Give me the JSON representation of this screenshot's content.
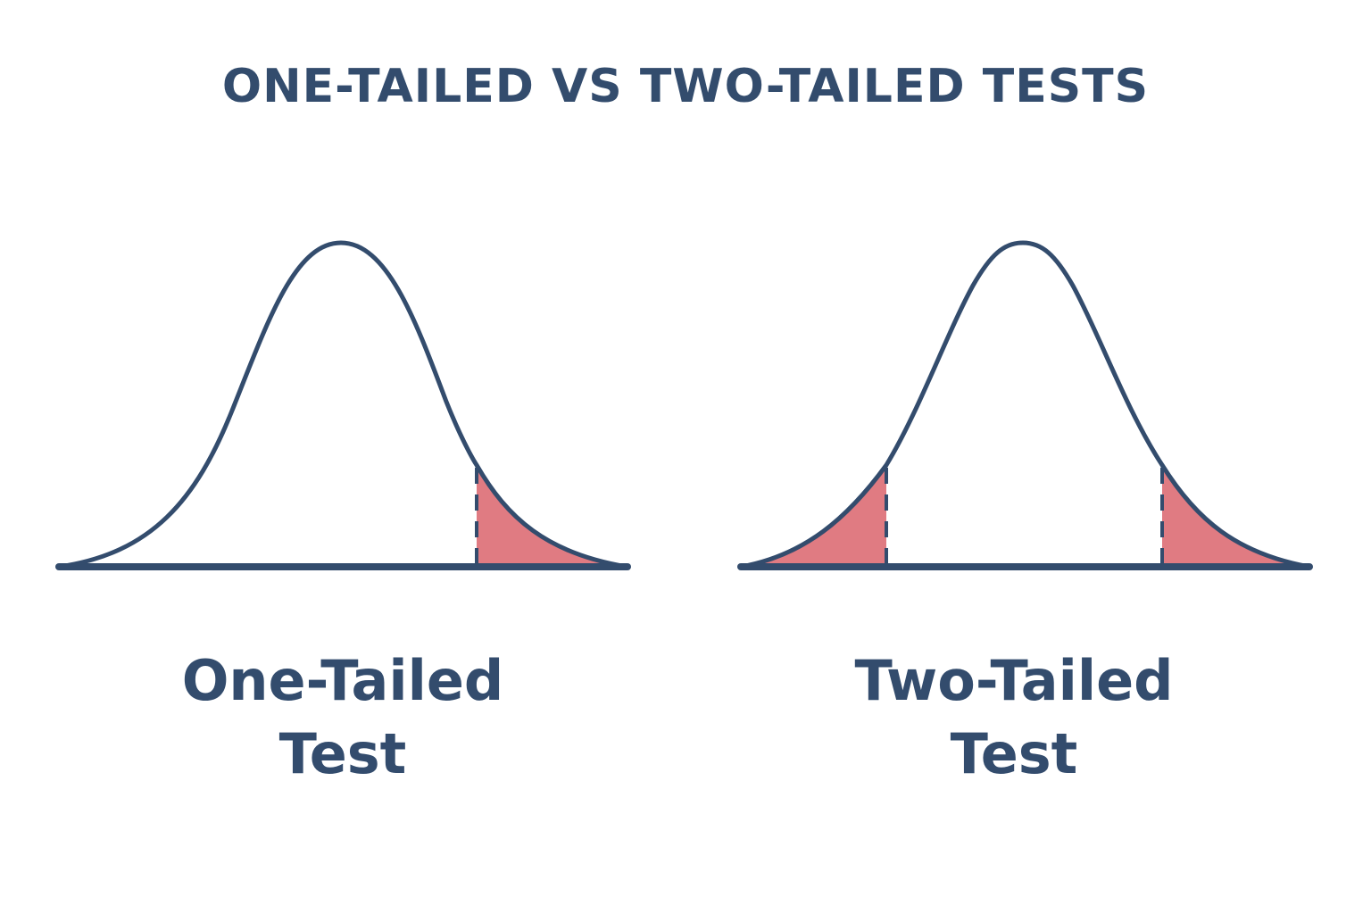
{
  "title": "ONE-TAILED VS TWO-TAILED TESTS",
  "panels": [
    {
      "caption_line1": "One-Tailed",
      "caption_line2": "Test",
      "shaded_tails": [
        "right"
      ]
    },
    {
      "caption_line1": "Two-Tailed",
      "caption_line2": "Test",
      "shaded_tails": [
        "left",
        "right"
      ]
    }
  ],
  "colors": {
    "ink": "#334c6d",
    "tail_fill": "#e07b82",
    "background": "#ffffff"
  }
}
